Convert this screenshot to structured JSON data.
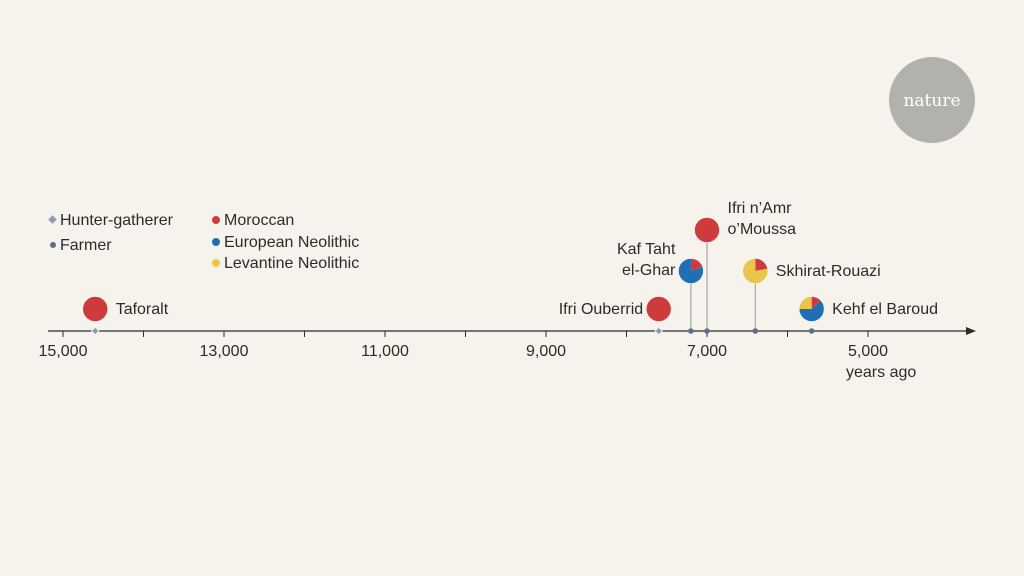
{
  "colors": {
    "background": "#f5f3ec",
    "moroccan": "#cd3b3d",
    "european": "#1f6fb4",
    "levantine": "#e9c54b",
    "axis": "#2b2b2b",
    "stem": "#9a9a9a",
    "hunter_marker": "#8e9bb4",
    "farmer_marker": "#5b6f8f",
    "logo_bg": "#b2b1ad"
  },
  "logo": {
    "text": "nature"
  },
  "chart_data": {
    "type": "timeline-pie",
    "title": "",
    "xlabel": "years ago",
    "xlim": [
      15200,
      3600
    ],
    "x_direction": "decreasing-left-to-right",
    "ticks": [
      15000,
      13000,
      11000,
      9000,
      7000,
      5000
    ],
    "tick_labels": [
      "15,000",
      "13,000",
      "11,000",
      "9,000",
      "7,000",
      "5,000"
    ],
    "minor_ticks": [
      14000,
      12000,
      10000,
      8000,
      6000
    ],
    "axis_unit_label": "years ago",
    "legend": {
      "lifestyle": [
        {
          "key": "hunter",
          "label": "Hunter-gatherer",
          "marker": "diamond"
        },
        {
          "key": "farmer",
          "label": "Farmer",
          "marker": "dot"
        }
      ],
      "ancestry": [
        {
          "key": "moroccan",
          "label": "Moroccan"
        },
        {
          "key": "european",
          "label": "European Neolithic"
        },
        {
          "key": "levantine",
          "label": "Levantine Neolithic"
        }
      ]
    },
    "series": [
      "Moroccan",
      "European Neolithic",
      "Levantine Neolithic"
    ],
    "sites": [
      {
        "name": "Taforalt",
        "label_lines": [
          "Taforalt"
        ],
        "years_ago": 14600,
        "lifestyle": "hunter",
        "level": 0,
        "label_side": "right",
        "ancestry": {
          "moroccan": 1.0,
          "european": 0.0,
          "levantine": 0.0
        }
      },
      {
        "name": "Ifri Ouberrid",
        "label_lines": [
          "Ifri Ouberrid"
        ],
        "years_ago": 7600,
        "lifestyle": "hunter",
        "level": 0,
        "label_side": "left",
        "ancestry": {
          "moroccan": 1.0,
          "european": 0.0,
          "levantine": 0.0
        }
      },
      {
        "name": "Kaf Taht el-Ghar",
        "label_lines": [
          "Kaf Taht",
          "el-Ghar"
        ],
        "years_ago": 7200,
        "lifestyle": "farmer",
        "level": 1,
        "label_side": "left",
        "ancestry": {
          "moroccan": 0.2,
          "european": 0.8,
          "levantine": 0.0
        }
      },
      {
        "name": "Ifri n'Amr o'Moussa",
        "label_lines": [
          "Ifri n’Amr",
          "o’Moussa"
        ],
        "years_ago": 7000,
        "lifestyle": "farmer",
        "level": 2,
        "label_side": "right",
        "ancestry": {
          "moroccan": 1.0,
          "european": 0.0,
          "levantine": 0.0
        }
      },
      {
        "name": "Skhirat-Rouazi",
        "label_lines": [
          "Skhirat-Rouazi"
        ],
        "years_ago": 6400,
        "lifestyle": "farmer",
        "level": 1,
        "label_side": "right",
        "ancestry": {
          "moroccan": 0.22,
          "european": 0.0,
          "levantine": 0.78
        }
      },
      {
        "name": "Kehf el Baroud",
        "label_lines": [
          "Kehf el Baroud"
        ],
        "years_ago": 5700,
        "lifestyle": "farmer",
        "level": 0,
        "label_side": "right",
        "ancestry": {
          "moroccan": 0.13,
          "european": 0.62,
          "levantine": 0.25
        }
      }
    ]
  }
}
